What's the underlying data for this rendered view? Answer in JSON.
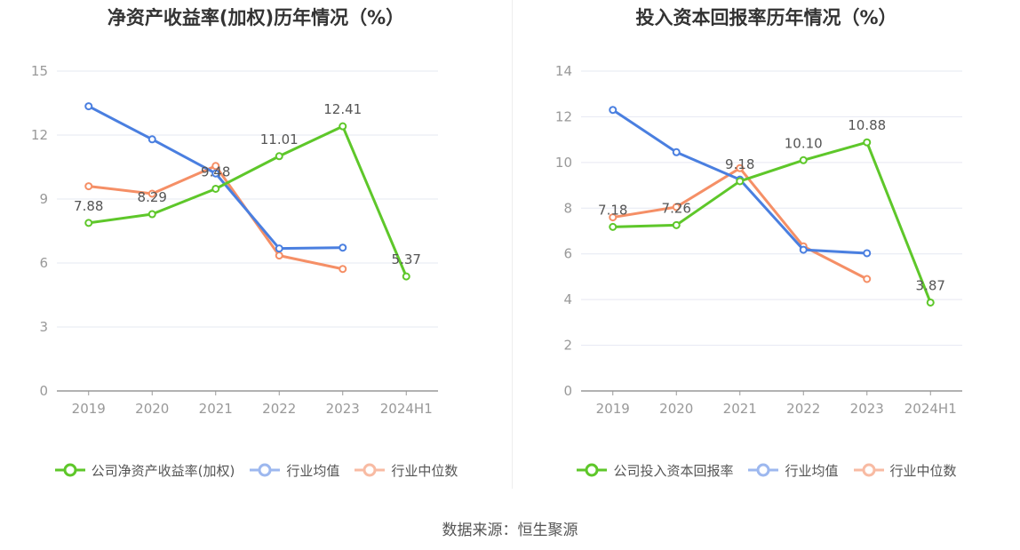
{
  "source": "数据来源：恒生聚源",
  "colors": {
    "company": "#5ec72a",
    "avg": "#4a7fe0",
    "median": "#f58f66",
    "grid": "#e6e8f2",
    "axis": "#999999",
    "tick": "#999999",
    "label": "#555555"
  },
  "chart_data": [
    {
      "type": "line",
      "title": "净资产收益率(加权)历年情况（%）",
      "categories": [
        "2019",
        "2020",
        "2021",
        "2022",
        "2023",
        "2024H1"
      ],
      "ylim": [
        0,
        15
      ],
      "yticks": [
        0,
        3,
        6,
        9,
        12,
        15
      ],
      "series": [
        {
          "name": "公司净资产收益率(加权)",
          "key": "company",
          "values": [
            7.88,
            8.29,
            9.48,
            11.01,
            12.41,
            5.37
          ],
          "labels": [
            "7.88",
            "8.29",
            "9.48",
            "11.01",
            "12.41",
            "5.37"
          ]
        },
        {
          "name": "行业均值",
          "key": "avg",
          "values": [
            13.35,
            11.8,
            10.2,
            6.68,
            6.72,
            null
          ]
        },
        {
          "name": "行业中位数",
          "key": "median",
          "values": [
            9.6,
            9.25,
            10.55,
            6.35,
            5.72,
            null
          ]
        }
      ]
    },
    {
      "type": "line",
      "title": "投入资本回报率历年情况（%）",
      "categories": [
        "2019",
        "2020",
        "2021",
        "2022",
        "2023",
        "2024H1"
      ],
      "ylim": [
        0,
        14
      ],
      "yticks": [
        0,
        2,
        4,
        6,
        8,
        10,
        12,
        14
      ],
      "series": [
        {
          "name": "公司投入资本回报率",
          "key": "company",
          "values": [
            7.18,
            7.26,
            9.18,
            10.1,
            10.88,
            3.87
          ],
          "labels": [
            "7.18",
            "7.26",
            "9.18",
            "10.10",
            "10.88",
            "3.87"
          ]
        },
        {
          "name": "行业均值",
          "key": "avg",
          "values": [
            12.3,
            10.45,
            9.25,
            6.18,
            6.03,
            null
          ]
        },
        {
          "name": "行业中位数",
          "key": "median",
          "values": [
            7.6,
            8.05,
            9.75,
            6.33,
            4.9,
            null
          ]
        }
      ]
    }
  ]
}
